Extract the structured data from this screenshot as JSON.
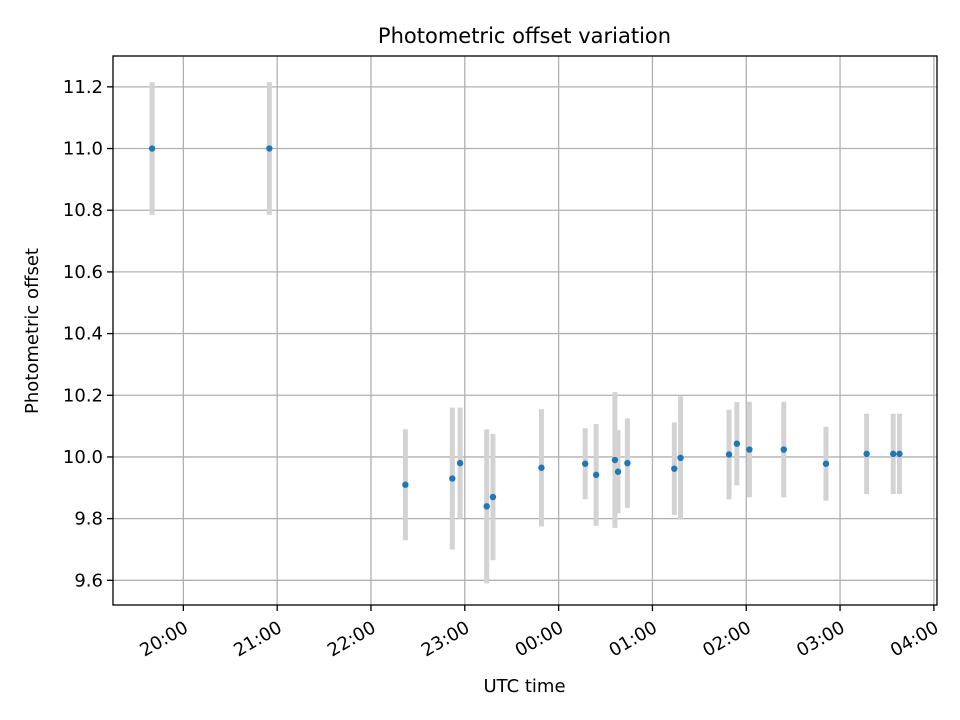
{
  "chart_data": {
    "type": "scatter",
    "title": "Photometric offset variation",
    "xlabel": "UTC time",
    "ylabel": "Photometric offset",
    "x_ticks": [
      "20:00",
      "21:00",
      "22:00",
      "23:00",
      "00:00",
      "01:00",
      "02:00",
      "03:00",
      "04:00"
    ],
    "y_ticks": [
      "9.6",
      "9.8",
      "10.0",
      "10.2",
      "10.4",
      "10.6",
      "10.8",
      "11.0",
      "11.2"
    ],
    "xlim": [
      "19:15",
      "04:02"
    ],
    "ylim": [
      9.52,
      11.3
    ],
    "grid": true,
    "marker_color": "#1f77b4",
    "errorbar_color": "#d3d3d3",
    "points": [
      {
        "t": "19:40",
        "y": 11.0,
        "err": 0.215
      },
      {
        "t": "20:55",
        "y": 11.0,
        "err": 0.215
      },
      {
        "t": "22:22",
        "y": 9.91,
        "err": 0.18
      },
      {
        "t": "22:52",
        "y": 9.93,
        "err": 0.23
      },
      {
        "t": "22:57",
        "y": 9.98,
        "err": 0.18
      },
      {
        "t": "23:14",
        "y": 9.84,
        "err": 0.25
      },
      {
        "t": "23:18",
        "y": 9.87,
        "err": 0.205
      },
      {
        "t": "23:49",
        "y": 9.965,
        "err": 0.19
      },
      {
        "t": "00:17",
        "y": 9.978,
        "err": 0.115
      },
      {
        "t": "00:24",
        "y": 9.942,
        "err": 0.165
      },
      {
        "t": "00:36",
        "y": 9.99,
        "err": 0.22
      },
      {
        "t": "00:38",
        "y": 9.952,
        "err": 0.135
      },
      {
        "t": "00:44",
        "y": 9.98,
        "err": 0.145
      },
      {
        "t": "01:14",
        "y": 9.962,
        "err": 0.15
      },
      {
        "t": "01:18",
        "y": 9.997,
        "err": 0.2
      },
      {
        "t": "01:49",
        "y": 10.008,
        "err": 0.145
      },
      {
        "t": "01:54",
        "y": 10.043,
        "err": 0.135
      },
      {
        "t": "02:02",
        "y": 10.024,
        "err": 0.155
      },
      {
        "t": "02:24",
        "y": 10.024,
        "err": 0.155
      },
      {
        "t": "02:51",
        "y": 9.978,
        "err": 0.12
      },
      {
        "t": "03:17",
        "y": 10.01,
        "err": 0.13
      },
      {
        "t": "03:34",
        "y": 10.01,
        "err": 0.13
      },
      {
        "t": "03:38",
        "y": 10.01,
        "err": 0.13
      }
    ]
  }
}
